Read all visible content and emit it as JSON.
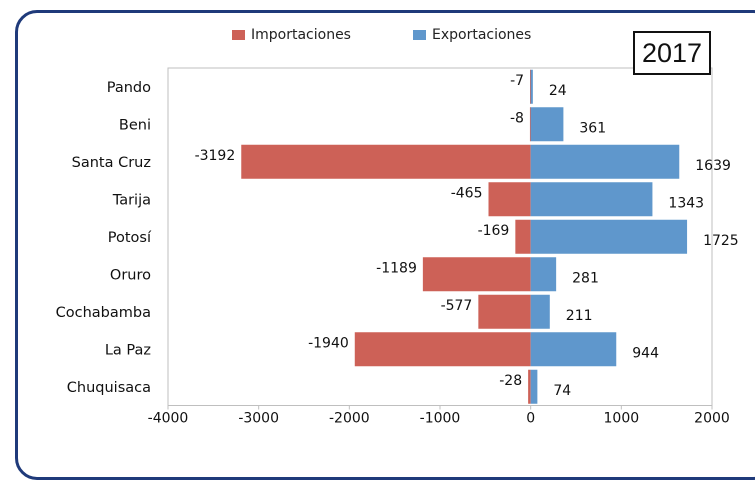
{
  "chart_data": {
    "type": "bar",
    "orientation": "horizontal",
    "categories": [
      "Pando",
      "Beni",
      "Santa Cruz",
      "Tarija",
      "Potosí",
      "Oruro",
      "Cochabamba",
      "La Paz",
      "Chuquisaca"
    ],
    "series": [
      {
        "name": "Importaciones",
        "values": [
          -7,
          -8,
          -3192,
          -465,
          -169,
          -1189,
          -577,
          -1940,
          -28
        ],
        "color": "#cd6157"
      },
      {
        "name": "Exportaciones",
        "values": [
          24,
          361,
          1639,
          1343,
          1725,
          281,
          211,
          944,
          74
        ],
        "color": "#5f97cc"
      }
    ],
    "xlim": [
      -4000,
      2000
    ],
    "xticks": [
      "-4000",
      "-3000",
      "-2000",
      "-1000",
      "0",
      "1000",
      "2000"
    ],
    "legend_position": "top",
    "grid": false,
    "year_label": "2017"
  },
  "colors": {
    "frame": "#1f3a7a",
    "import": "#cd6157",
    "export": "#5f97cc",
    "axis": "#bfbfbf"
  }
}
